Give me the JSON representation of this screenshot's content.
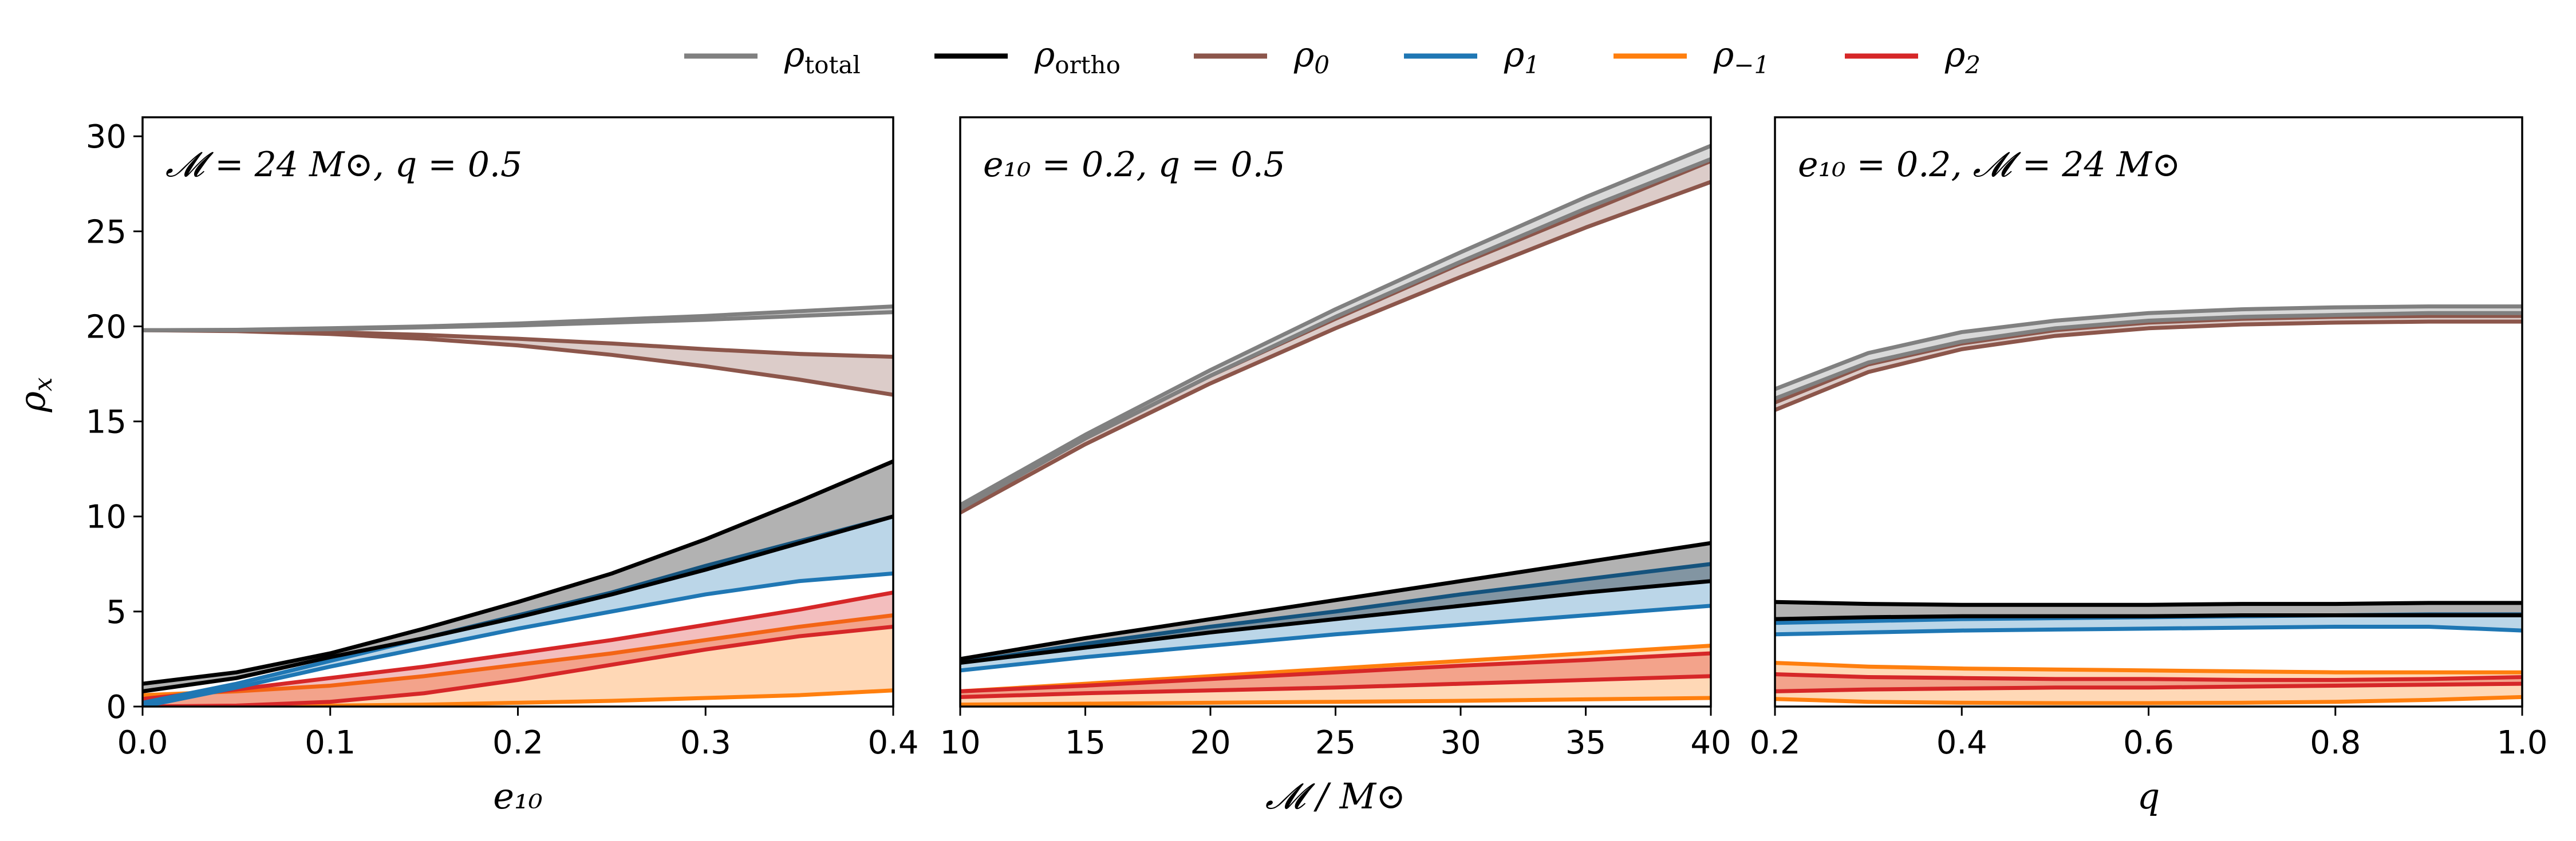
{
  "legend": {
    "placement": "top-center",
    "items": [
      {
        "key": "total",
        "symbol": "ρ",
        "sub": "total",
        "color": "#808080"
      },
      {
        "key": "ortho",
        "symbol": "ρ",
        "sub": "ortho",
        "color": "#000000"
      },
      {
        "key": "rho0",
        "symbol": "ρ",
        "sub": "0",
        "color": "#8c564b"
      },
      {
        "key": "rho1",
        "symbol": "ρ",
        "sub": "1",
        "color": "#1f77b4"
      },
      {
        "key": "rhom1",
        "symbol": "ρ",
        "sub": "−1",
        "color": "#ff7f0e"
      },
      {
        "key": "rho2",
        "symbol": "ρ",
        "sub": "2",
        "color": "#d62728"
      }
    ]
  },
  "ylabel": {
    "symbol": "ρ",
    "sub": "x"
  },
  "chart_data": [
    {
      "type": "area",
      "annotation": "𝓜 = 24 M⊙, q = 0.5",
      "xlabel": "e₁₀",
      "xlim": [
        0,
        0.4
      ],
      "ylim": [
        0,
        31
      ],
      "xticks": [
        0,
        0.1,
        0.2,
        0.3,
        0.4
      ],
      "xtick_labels": [
        "0.0",
        "0.1",
        "0.2",
        "0.3",
        "0.4"
      ],
      "yticks": [
        0,
        5,
        10,
        15,
        20,
        25,
        30
      ],
      "ytick_labels": [
        "0",
        "5",
        "10",
        "15",
        "20",
        "25",
        "30"
      ],
      "show_yticks": true,
      "x": [
        0,
        0.05,
        0.1,
        0.15,
        0.2,
        0.25,
        0.3,
        0.35,
        0.4
      ],
      "series": [
        {
          "key": "total",
          "lower": [
            19.8,
            19.8,
            19.85,
            19.95,
            20.05,
            20.2,
            20.35,
            20.55,
            20.75
          ],
          "upper": [
            19.8,
            19.82,
            19.9,
            20.0,
            20.15,
            20.35,
            20.55,
            20.8,
            21.05
          ]
        },
        {
          "key": "rho0",
          "lower": [
            19.8,
            19.75,
            19.6,
            19.35,
            19.0,
            18.5,
            17.9,
            17.2,
            16.4
          ],
          "upper": [
            19.8,
            19.78,
            19.7,
            19.55,
            19.35,
            19.1,
            18.8,
            18.55,
            18.4
          ]
        },
        {
          "key": "ortho",
          "lower": [
            0.8,
            1.5,
            2.6,
            3.6,
            4.7,
            5.9,
            7.2,
            8.6,
            10.0
          ],
          "upper": [
            1.2,
            1.8,
            2.8,
            4.1,
            5.5,
            7.0,
            8.8,
            10.8,
            12.9
          ]
        },
        {
          "key": "rho1",
          "lower": [
            0.0,
            1.0,
            2.1,
            3.1,
            4.1,
            5.0,
            5.9,
            6.6,
            7.0
          ],
          "upper": [
            0.2,
            1.2,
            2.4,
            3.6,
            4.8,
            6.0,
            7.4,
            8.7,
            10.0
          ]
        },
        {
          "key": "rhom1",
          "lower": [
            0.0,
            0.02,
            0.05,
            0.1,
            0.2,
            0.3,
            0.45,
            0.6,
            0.85
          ],
          "upper": [
            0.6,
            0.8,
            1.1,
            1.6,
            2.2,
            2.8,
            3.5,
            4.2,
            4.8
          ]
        },
        {
          "key": "rho2",
          "lower": [
            0.0,
            0.05,
            0.25,
            0.7,
            1.4,
            2.2,
            3.0,
            3.7,
            4.2
          ],
          "upper": [
            0.4,
            0.9,
            1.5,
            2.1,
            2.8,
            3.5,
            4.3,
            5.1,
            6.0
          ]
        }
      ]
    },
    {
      "type": "area",
      "annotation": "e₁₀ = 0.2, q = 0.5",
      "xlabel": "𝓜 / M⊙",
      "xlim": [
        10,
        40
      ],
      "ylim": [
        0,
        31
      ],
      "xticks": [
        10,
        15,
        20,
        25,
        30,
        35,
        40
      ],
      "xtick_labels": [
        "10",
        "15",
        "20",
        "25",
        "30",
        "35",
        "40"
      ],
      "yticks": [
        0,
        5,
        10,
        15,
        20,
        25,
        30
      ],
      "ytick_labels": [],
      "show_yticks": false,
      "x": [
        10,
        15,
        20,
        25,
        30,
        35,
        40
      ],
      "series": [
        {
          "key": "total",
          "lower": [
            10.4,
            14.1,
            17.4,
            20.5,
            23.4,
            26.2,
            28.8
          ],
          "upper": [
            10.6,
            14.3,
            17.7,
            20.9,
            23.9,
            26.8,
            29.5
          ]
        },
        {
          "key": "rho0",
          "lower": [
            10.2,
            13.8,
            17.0,
            19.9,
            22.6,
            25.2,
            27.6
          ],
          "upper": [
            10.4,
            14.1,
            17.4,
            20.4,
            23.3,
            26.0,
            28.7
          ]
        },
        {
          "key": "ortho",
          "lower": [
            2.3,
            3.1,
            3.9,
            4.6,
            5.3,
            6.0,
            6.6
          ],
          "upper": [
            2.5,
            3.6,
            4.6,
            5.6,
            6.6,
            7.6,
            8.6
          ]
        },
        {
          "key": "rho1",
          "lower": [
            1.9,
            2.6,
            3.2,
            3.8,
            4.3,
            4.8,
            5.3
          ],
          "upper": [
            2.3,
            3.3,
            4.2,
            5.0,
            5.9,
            6.7,
            7.5
          ]
        },
        {
          "key": "rhom1",
          "lower": [
            0.1,
            0.15,
            0.2,
            0.25,
            0.3,
            0.38,
            0.45
          ],
          "upper": [
            0.8,
            1.2,
            1.6,
            2.0,
            2.4,
            2.8,
            3.2
          ]
        },
        {
          "key": "rho2",
          "lower": [
            0.5,
            0.7,
            0.85,
            1.0,
            1.2,
            1.4,
            1.6
          ],
          "upper": [
            0.8,
            1.1,
            1.45,
            1.8,
            2.15,
            2.45,
            2.8
          ]
        }
      ]
    },
    {
      "type": "area",
      "annotation": "e₁₀ = 0.2, 𝓜 = 24 M⊙",
      "xlabel": "q",
      "xlim": [
        0.2,
        1.0
      ],
      "ylim": [
        0,
        31
      ],
      "xticks": [
        0.2,
        0.4,
        0.6,
        0.8,
        1.0
      ],
      "xtick_labels": [
        "0.2",
        "0.4",
        "0.6",
        "0.8",
        "1.0"
      ],
      "yticks": [
        0,
        5,
        10,
        15,
        20,
        25,
        30
      ],
      "ytick_labels": [],
      "show_yticks": false,
      "x": [
        0.2,
        0.3,
        0.4,
        0.5,
        0.6,
        0.7,
        0.8,
        0.9,
        1.0
      ],
      "series": [
        {
          "key": "total",
          "lower": [
            16.2,
            18.1,
            19.2,
            19.9,
            20.3,
            20.5,
            20.6,
            20.7,
            20.7
          ],
          "upper": [
            16.7,
            18.6,
            19.7,
            20.3,
            20.7,
            20.9,
            21.0,
            21.05,
            21.05
          ]
        },
        {
          "key": "rho0",
          "lower": [
            15.6,
            17.6,
            18.8,
            19.5,
            19.9,
            20.1,
            20.2,
            20.25,
            20.25
          ],
          "upper": [
            16.0,
            18.0,
            19.1,
            19.8,
            20.2,
            20.4,
            20.5,
            20.55,
            20.55
          ]
        },
        {
          "key": "ortho",
          "lower": [
            4.6,
            4.7,
            4.75,
            4.75,
            4.75,
            4.8,
            4.8,
            4.8,
            4.8
          ],
          "upper": [
            5.5,
            5.4,
            5.35,
            5.35,
            5.35,
            5.4,
            5.4,
            5.45,
            5.45
          ]
        },
        {
          "key": "rho1",
          "lower": [
            3.8,
            3.9,
            4.0,
            4.05,
            4.1,
            4.15,
            4.2,
            4.2,
            4.0
          ],
          "upper": [
            4.4,
            4.5,
            4.6,
            4.65,
            4.7,
            4.75,
            4.8,
            4.85,
            4.85
          ]
        },
        {
          "key": "rhom1",
          "lower": [
            0.4,
            0.25,
            0.2,
            0.18,
            0.18,
            0.2,
            0.25,
            0.35,
            0.5
          ],
          "upper": [
            2.3,
            2.1,
            2.0,
            1.95,
            1.9,
            1.85,
            1.8,
            1.8,
            1.8
          ]
        },
        {
          "key": "rho2",
          "lower": [
            0.8,
            0.9,
            0.95,
            1.0,
            1.0,
            1.05,
            1.1,
            1.15,
            1.2
          ],
          "upper": [
            1.7,
            1.55,
            1.5,
            1.45,
            1.45,
            1.4,
            1.4,
            1.45,
            1.55
          ]
        }
      ]
    }
  ]
}
